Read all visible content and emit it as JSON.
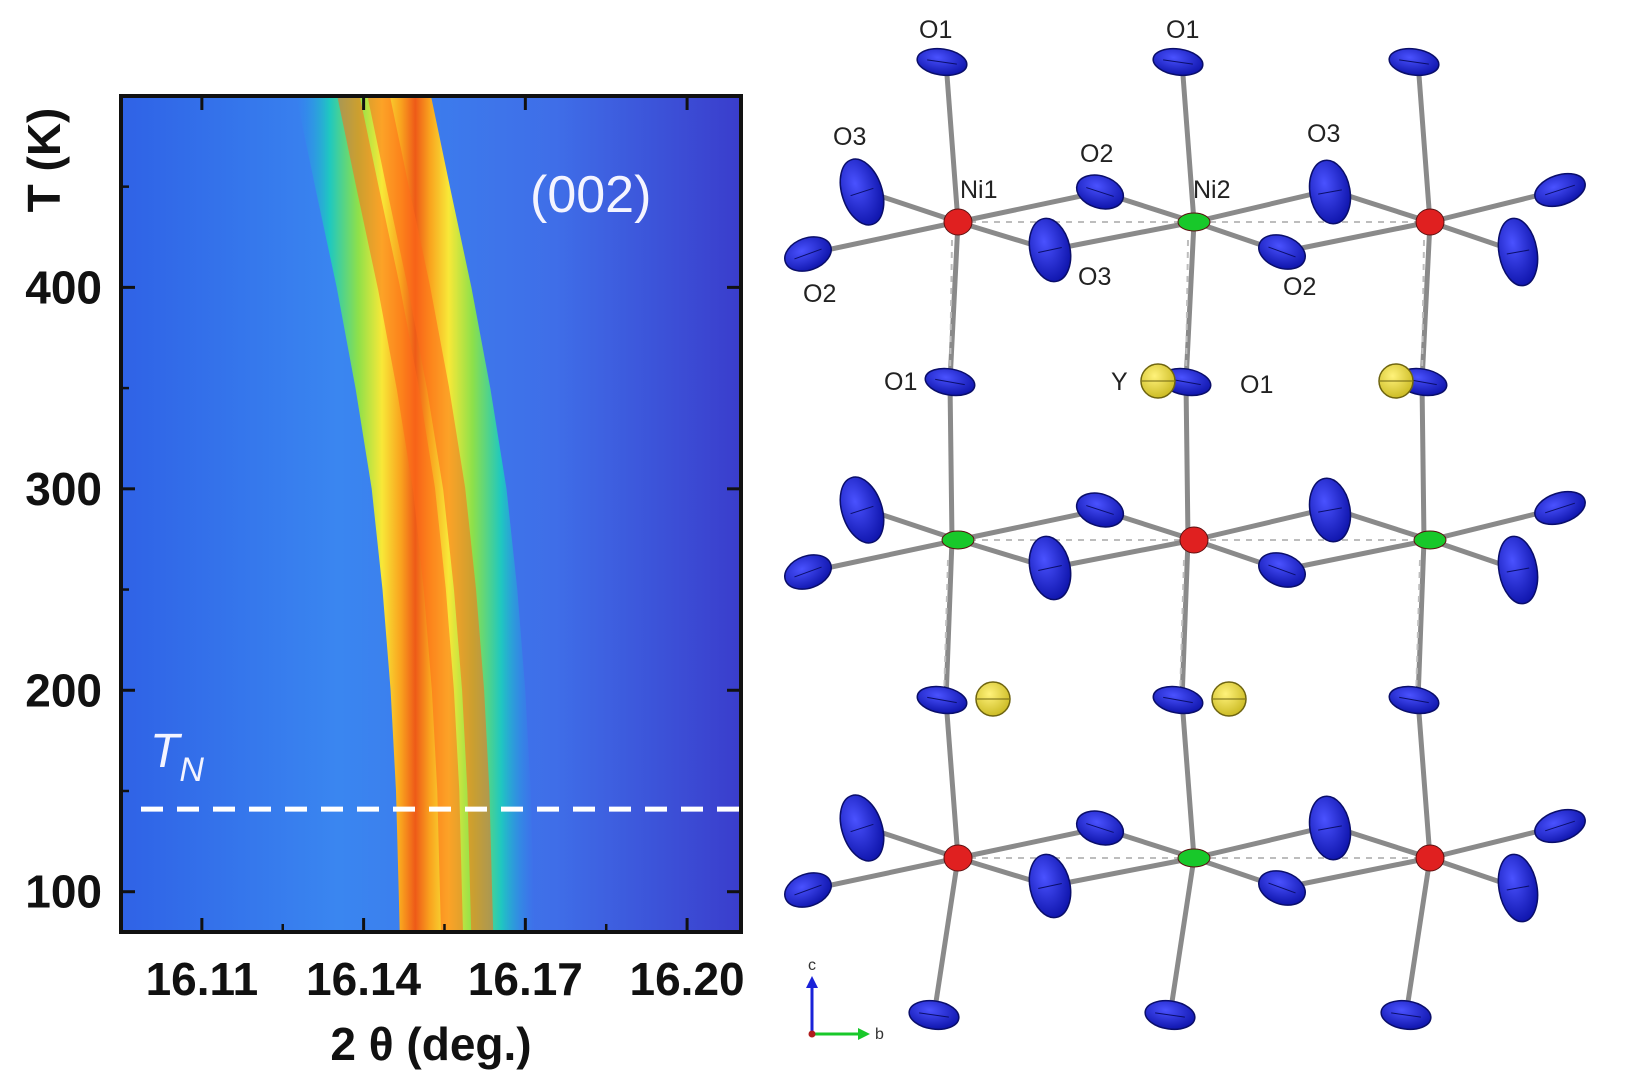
{
  "chart_data": {
    "type": "heatmap",
    "title": "",
    "annotation": "(002)",
    "xlabel": "2 θ (deg.)",
    "ylabel": "T (K)",
    "xlim": [
      16.095,
      16.21
    ],
    "ylim": [
      80,
      495
    ],
    "xticks": [
      "16.11",
      "16.14",
      "16.17",
      "16.20"
    ],
    "xtick_values": [
      16.11,
      16.14,
      16.17,
      16.2
    ],
    "yticks": [
      "100",
      "200",
      "300",
      "400"
    ],
    "ytick_values": [
      100,
      200,
      300,
      400
    ],
    "ridge": {
      "description_points": [
        {
          "T": 495,
          "two_theta": 16.14
        },
        {
          "T": 450,
          "two_theta": 16.1435
        },
        {
          "T": 400,
          "two_theta": 16.1475
        },
        {
          "T": 350,
          "two_theta": 16.151
        },
        {
          "T": 300,
          "two_theta": 16.154
        },
        {
          "T": 250,
          "two_theta": 16.156
        },
        {
          "T": 200,
          "two_theta": 16.1575
        },
        {
          "T": 150,
          "two_theta": 16.1585
        },
        {
          "T": 100,
          "two_theta": 16.159
        },
        {
          "T": 80,
          "two_theta": 16.1592
        }
      ]
    },
    "tn_line": {
      "label": "T",
      "subscript": "N",
      "T": 141
    },
    "colormap": [
      "#3a3fd6",
      "#2a8ff0",
      "#1fc8c0",
      "#8ee04a",
      "#f8e838",
      "#f9a21e",
      "#ee4616"
    ]
  },
  "structure": {
    "atom_labels": {
      "o1": "O1",
      "o2": "O2",
      "o3": "O3",
      "ni1": "Ni1",
      "ni2": "Ni2",
      "y": "Y"
    },
    "axes_key": {
      "c": "c",
      "b": "b"
    },
    "colors": {
      "oxygen": "#1a22d8",
      "ni_red": "#e02020",
      "ni_green": "#18c82a",
      "yttrium": "#f2e640",
      "bond": "#8a8a8a"
    }
  }
}
